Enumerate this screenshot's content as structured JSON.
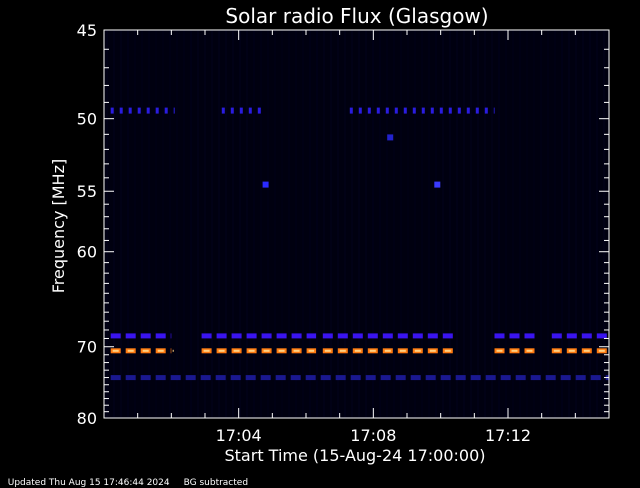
{
  "chart_data": {
    "type": "heatmap",
    "title": "Solar radio Flux (Glasgow)",
    "xlabel": "Start Time (15-Aug-24 17:00:00)",
    "ylabel": "Frequency [MHz]",
    "x_range_minutes": [
      0,
      15
    ],
    "x_tick_labels": [
      {
        "minute": 4,
        "label": "17:04"
      },
      {
        "minute": 8,
        "label": "17:08"
      },
      {
        "minute": 12,
        "label": "17:12"
      }
    ],
    "y_range_mhz": [
      45,
      80
    ],
    "y_tick_labels": [
      {
        "mhz": 45,
        "label": "45"
      },
      {
        "mhz": 50,
        "label": "50"
      },
      {
        "mhz": 55,
        "label": "55"
      },
      {
        "mhz": 60,
        "label": "60"
      },
      {
        "mhz": 70,
        "label": "70"
      },
      {
        "mhz": 80,
        "label": "80"
      }
    ],
    "y_scale": "reciprocal",
    "background_color": "#000010",
    "bands": [
      {
        "mhz": 49.5,
        "color": "#2a1ce0",
        "segments": [
          [
            0.2,
            2.1
          ],
          [
            3.5,
            4.7
          ],
          [
            7.3,
            11.6
          ]
        ],
        "style": "dotted"
      },
      {
        "mhz": 68.7,
        "color": "#3a14f0",
        "segments": [
          [
            0.2,
            2.0
          ],
          [
            2.9,
            6.3
          ],
          [
            6.5,
            10.5
          ],
          [
            11.6,
            12.8
          ],
          [
            13.3,
            15.0
          ]
        ],
        "style": "dashed"
      },
      {
        "mhz": 70.5,
        "color": "#ff7a10",
        "segments": [
          [
            0.2,
            2.0
          ],
          [
            2.9,
            6.3
          ],
          [
            6.5,
            10.5
          ],
          [
            11.6,
            12.8
          ],
          [
            13.3,
            15.0
          ]
        ],
        "style": "dashed"
      },
      {
        "mhz": 74.0,
        "color": "#1a1890",
        "segments": [
          [
            0.2,
            15.0
          ]
        ],
        "style": "dashed"
      }
    ],
    "spots": [
      {
        "minute": 4.8,
        "mhz": 54.5,
        "color": "#2a2aff"
      },
      {
        "minute": 9.9,
        "mhz": 54.5,
        "color": "#3a3aff"
      },
      {
        "minute": 8.5,
        "mhz": 51.2,
        "color": "#2222cc"
      }
    ]
  },
  "footer": {
    "updated": "Updated Thu Aug 15 17:46:44 2024",
    "bg": "BG subtracted"
  }
}
